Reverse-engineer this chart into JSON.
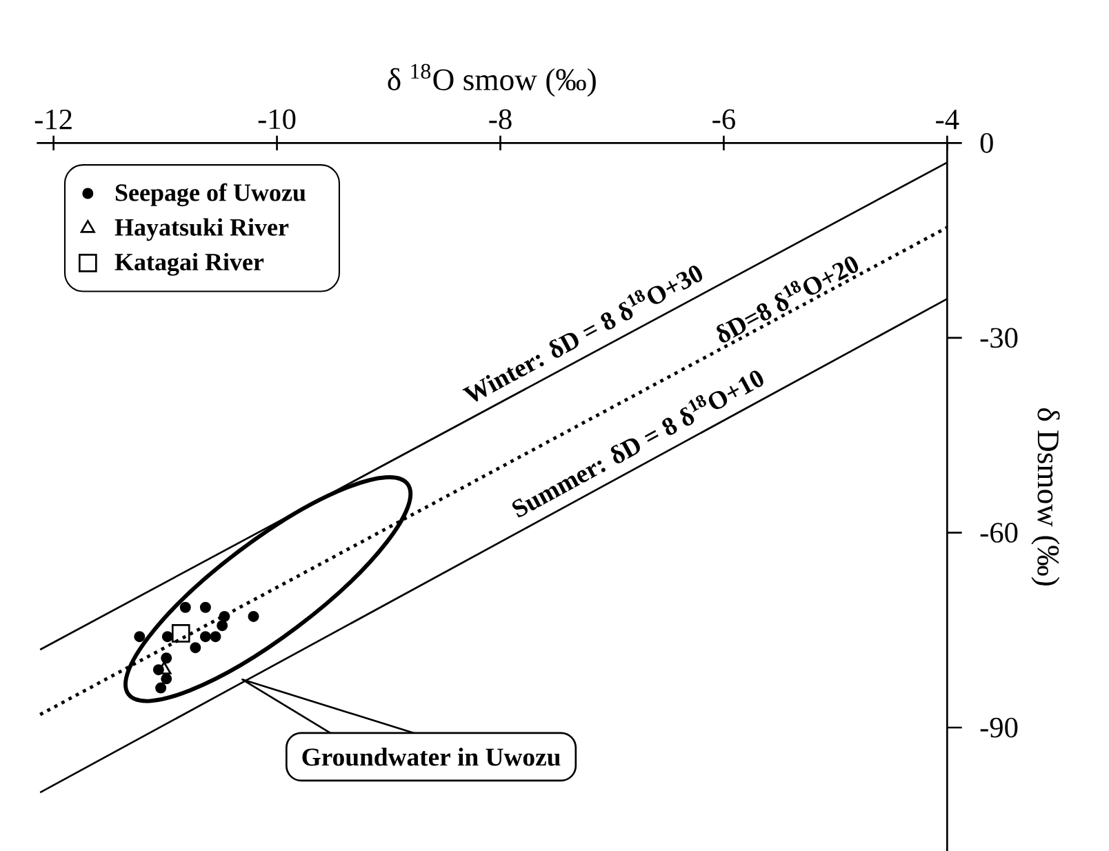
{
  "chart_data": {
    "type": "scatter",
    "xlabel": "δ $^{18}$O smow (‰)",
    "ylabel": "δ Dsmow (‰)",
    "xlim": [
      -12.15,
      -4
    ],
    "ylim": [
      -109,
      0
    ],
    "xticks": [
      -12,
      -10,
      -8,
      -6,
      -4
    ],
    "yticks": [
      0,
      -30,
      -60,
      -90
    ],
    "legend": "top left",
    "grid": false,
    "series": [
      {
        "name": "Seepage of Uwozu",
        "marker": "circle",
        "color": "#000000",
        "x": [
          -10.82,
          -10.64,
          -10.47,
          -10.21,
          -10.49,
          -10.98,
          -10.64,
          -10.55,
          -10.73,
          -11.23,
          -11.06,
          -10.99,
          -11.04,
          -10.99
        ],
        "values": [
          -71.5,
          -71.5,
          -72.9,
          -72.9,
          -74.3,
          -76.0,
          -76.0,
          -76.0,
          -77.7,
          -76.0,
          -81.1,
          -79.3,
          -83.9,
          -82.5
        ]
      },
      {
        "name": "Hayatsuki River",
        "marker": "triangle",
        "color": "#000000",
        "x": [
          -11.01
        ],
        "values": [
          -81.1
        ]
      },
      {
        "name": "Katagai River",
        "marker": "square",
        "color": "#000000",
        "x": [
          -10.86
        ],
        "values": [
          -75.5
        ]
      },
      {
        "name": "Winter:  δD = 8 δ$^{18}$O+30",
        "type": "line",
        "line_style": "solid",
        "color": "#000000",
        "x": [
          -12.12,
          -4
        ],
        "values": [
          -78,
          -3
        ]
      },
      {
        "name": "δD=8 δ$^{18}$O+20",
        "type": "line",
        "line_style": "dotted",
        "color": "#000000",
        "x": [
          -12.12,
          -4
        ],
        "values": [
          -88,
          -13
        ]
      },
      {
        "name": "Summer:  δD = 8 δ$^{18}$O+10",
        "type": "line",
        "line_style": "solid",
        "color": "#000000",
        "x": [
          -12.12,
          -4
        ],
        "values": [
          -100,
          -24
        ]
      }
    ],
    "annotations": [
      "Groundwater in Uwozu"
    ]
  }
}
